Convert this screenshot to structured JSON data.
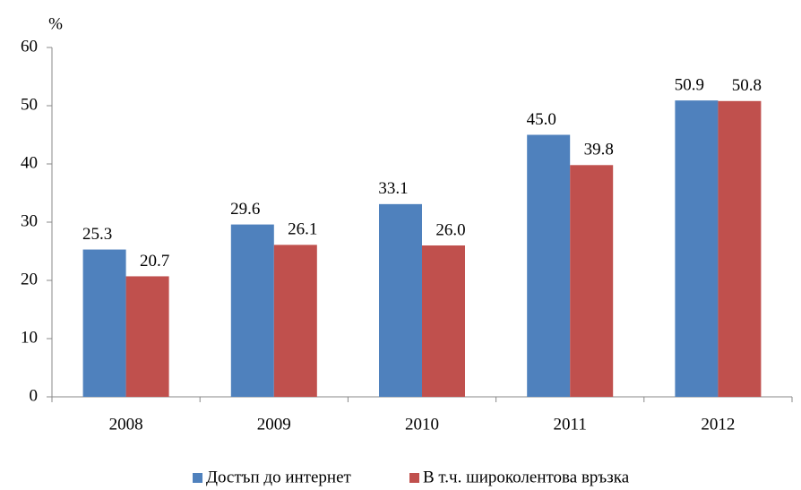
{
  "chart_data": {
    "type": "bar",
    "y_label": "%",
    "categories": [
      "2008",
      "2009",
      "2010",
      "2011",
      "2012"
    ],
    "series": [
      {
        "name": "Достъп до интернет",
        "color": "#4f81bd",
        "values": [
          25.3,
          29.6,
          33.1,
          45.0,
          50.9
        ],
        "value_labels": [
          "25.3",
          "29.6",
          "33.1",
          "45.0",
          "50.9"
        ]
      },
      {
        "name": "В т.ч. широколентова връзка",
        "color": "#c0504d",
        "values": [
          20.7,
          26.1,
          26.0,
          39.8,
          50.8
        ],
        "value_labels": [
          "20.7",
          "26.1",
          "26.0",
          "39.8",
          "50.8"
        ]
      }
    ],
    "ylim": [
      0,
      60
    ],
    "yticks": [
      0,
      10,
      20,
      30,
      40,
      50,
      60
    ],
    "grid": false,
    "legend": "bottom"
  }
}
